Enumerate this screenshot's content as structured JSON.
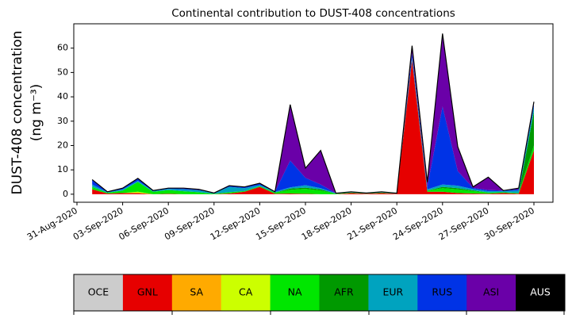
{
  "chart_data": {
    "type": "stacked_area",
    "title": "Continental contribution to DUST-408 concentrations",
    "ylabel": [
      "DUST-408 concentration",
      "(ng m⁻³)"
    ],
    "x": [
      "2020-09-01",
      "2020-09-02",
      "2020-09-03",
      "2020-09-04",
      "2020-09-05",
      "2020-09-06",
      "2020-09-07",
      "2020-09-08",
      "2020-09-09",
      "2020-09-10",
      "2020-09-11",
      "2020-09-12",
      "2020-09-13",
      "2020-09-14",
      "2020-09-15",
      "2020-09-16",
      "2020-09-17",
      "2020-09-18",
      "2020-09-19",
      "2020-09-20",
      "2020-09-21",
      "2020-09-22",
      "2020-09-23",
      "2020-09-24",
      "2020-09-25",
      "2020-09-26",
      "2020-09-27",
      "2020-09-28",
      "2020-09-29",
      "2020-09-30"
    ],
    "xlim": [
      "2020-08-30T19:00",
      "2020-10-01T06:00"
    ],
    "xticks": [
      {
        "value": "2020-08-31",
        "label": "31-Aug-2020"
      },
      {
        "value": "2020-09-03",
        "label": "03-Sep-2020"
      },
      {
        "value": "2020-09-06",
        "label": "06-Sep-2020"
      },
      {
        "value": "2020-09-09",
        "label": "09-Sep-2020"
      },
      {
        "value": "2020-09-12",
        "label": "12-Sep-2020"
      },
      {
        "value": "2020-09-15",
        "label": "15-Sep-2020"
      },
      {
        "value": "2020-09-18",
        "label": "18-Sep-2020"
      },
      {
        "value": "2020-09-21",
        "label": "21-Sep-2020"
      },
      {
        "value": "2020-09-24",
        "label": "24-Sep-2020"
      },
      {
        "value": "2020-09-27",
        "label": "27-Sep-2020"
      },
      {
        "value": "2020-09-30",
        "label": "30-Sep-2020"
      }
    ],
    "ylim": [
      -3.3,
      70
    ],
    "yticks": [
      0,
      10,
      20,
      30,
      40,
      50,
      60
    ],
    "series": [
      {
        "name": "OCE",
        "color": "#cccccc",
        "values": [
          0,
          0,
          0,
          0,
          0,
          0,
          0,
          0,
          0,
          0,
          0,
          0,
          0,
          0,
          0,
          0,
          0,
          0,
          0,
          0,
          0,
          0,
          0,
          0,
          0,
          0,
          0,
          0,
          0,
          0
        ]
      },
      {
        "name": "GNL",
        "color": "#e60000",
        "values": [
          2,
          0.3,
          0.5,
          0.5,
          0,
          0.2,
          0,
          0,
          0,
          0.3,
          1,
          3,
          0.2,
          0.3,
          0.2,
          0,
          0,
          0.5,
          0.2,
          0.5,
          0.2,
          55,
          1,
          1,
          0.5,
          0.3,
          0.2,
          0.5,
          0.2,
          18
        ]
      },
      {
        "name": "SA",
        "color": "#ffaa00",
        "values": [
          0,
          0,
          0,
          0,
          0,
          0,
          0,
          0,
          0,
          0,
          0,
          0,
          0,
          0,
          0,
          0,
          0,
          0,
          0,
          0,
          0,
          0,
          0,
          0,
          0,
          0,
          0,
          0,
          0,
          0
        ]
      },
      {
        "name": "CA",
        "color": "#ccff00",
        "values": [
          0,
          0,
          0,
          0.5,
          0,
          0,
          0,
          0,
          0,
          0,
          0,
          0,
          0,
          0,
          0,
          0,
          0,
          0,
          0,
          0,
          0,
          0,
          0,
          0,
          0,
          0,
          0,
          0,
          0,
          0
        ]
      },
      {
        "name": "NA",
        "color": "#00e600",
        "values": [
          1,
          0.3,
          1,
          4,
          1,
          1.5,
          1.2,
          0.8,
          0.2,
          0.5,
          0.3,
          0.3,
          0.5,
          1.5,
          2,
          1.5,
          0.2,
          0.2,
          0.1,
          0.2,
          0,
          0.5,
          0.5,
          1.5,
          1.5,
          1,
          0.5,
          0.3,
          0.3,
          2
        ]
      },
      {
        "name": "AFR",
        "color": "#009900",
        "values": [
          0,
          0,
          0,
          0,
          0,
          0,
          0,
          0,
          0,
          0,
          0,
          0,
          0,
          0.5,
          0.5,
          0.5,
          0,
          0,
          0,
          0,
          0,
          0,
          0,
          0.5,
          0.5,
          0.3,
          0,
          0,
          0,
          14
        ]
      },
      {
        "name": "EUR",
        "color": "#00a3bf",
        "values": [
          1,
          0.2,
          0.5,
          0.5,
          0.3,
          0.5,
          0.8,
          0.8,
          0.3,
          2.2,
          1.2,
          0.5,
          0.3,
          0.5,
          1,
          0.5,
          0.2,
          0.2,
          0.2,
          0.2,
          0.2,
          0.5,
          0.5,
          1,
          1,
          0.5,
          0.5,
          0.5,
          1,
          2
        ]
      },
      {
        "name": "RUS",
        "color": "#0033e6",
        "values": [
          2,
          0.2,
          0.5,
          1,
          0.2,
          0.3,
          0.3,
          0.2,
          0,
          0.5,
          0.5,
          0.7,
          0,
          11,
          3,
          1.5,
          0,
          0.1,
          0,
          0.1,
          0,
          2,
          1,
          32,
          6,
          0.5,
          0.5,
          0.2,
          0.5,
          1
        ]
      },
      {
        "name": "ASI",
        "color": "#6a00a8",
        "values": [
          0,
          0,
          0,
          0,
          0,
          0,
          0.2,
          0.2,
          0,
          0,
          0,
          0,
          0,
          23,
          4,
          14,
          0,
          0,
          0,
          0,
          0,
          3,
          2,
          30,
          10,
          0.4,
          5.3,
          0,
          0.5,
          1
        ]
      },
      {
        "name": "AUS",
        "color": "#000000",
        "values": [
          0,
          0,
          0,
          0,
          0,
          0,
          0,
          0,
          0,
          0,
          0,
          0,
          0,
          0,
          0,
          0,
          0,
          0,
          0,
          0,
          0,
          0,
          0,
          0,
          0,
          0,
          0,
          0,
          0,
          0
        ]
      }
    ]
  }
}
